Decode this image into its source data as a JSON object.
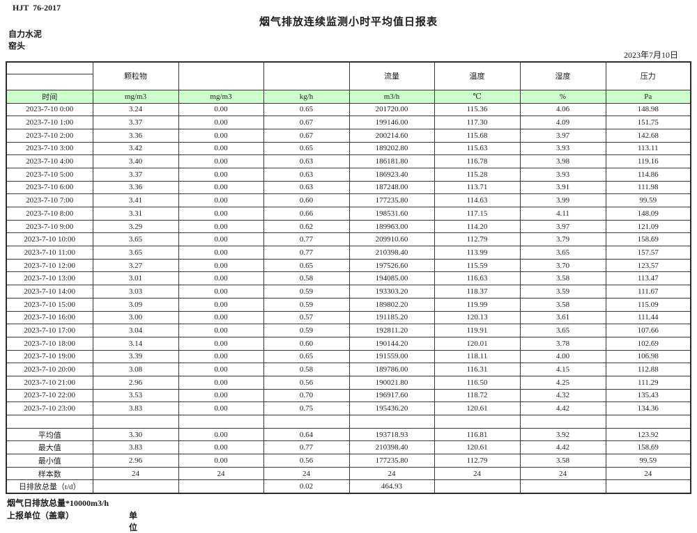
{
  "header": {
    "doc_code": "HJT  76-2017",
    "title": "烟气排放连续监测小时平均值日报表",
    "company": "自力水泥",
    "location": "窑头",
    "date": "2023年7月10日"
  },
  "table": {
    "group_headers": [
      "",
      "颗粒物",
      "",
      "",
      "流量",
      "温度",
      "湿度",
      "压力"
    ],
    "unit_row": [
      "时间",
      "mg/m3",
      "mg/m3",
      "kg/h",
      "m3/h",
      "℃",
      "%",
      "Pa"
    ],
    "rows": [
      [
        "2023-7-10 0:00",
        "3.24",
        "0.00",
        "0.65",
        "201720.00",
        "115.36",
        "4.06",
        "148.98"
      ],
      [
        "2023-7-10 1:00",
        "3.37",
        "0.00",
        "0.67",
        "199146.00",
        "117.30",
        "4.09",
        "151.75"
      ],
      [
        "2023-7-10 2:00",
        "3.36",
        "0.00",
        "0.67",
        "200214.60",
        "115.68",
        "3.97",
        "142.68"
      ],
      [
        "2023-7-10 3:00",
        "3.42",
        "0.00",
        "0.65",
        "189202.80",
        "115.63",
        "3.93",
        "113.11"
      ],
      [
        "2023-7-10 4:00",
        "3.40",
        "0.00",
        "0.63",
        "186181.80",
        "116.78",
        "3.98",
        "119.16"
      ],
      [
        "2023-7-10 5:00",
        "3.37",
        "0.00",
        "0.63",
        "186923.40",
        "115.28",
        "3.93",
        "114.86"
      ],
      [
        "2023-7-10 6:00",
        "3.36",
        "0.00",
        "0.63",
        "187248.00",
        "113.71",
        "3.91",
        "111.98"
      ],
      [
        "2023-7-10 7:00",
        "3.41",
        "0.00",
        "0.60",
        "177235.80",
        "114.63",
        "3.99",
        "99.59"
      ],
      [
        "2023-7-10 8:00",
        "3.31",
        "0.00",
        "0.66",
        "198531.60",
        "117.15",
        "4.11",
        "148.09"
      ],
      [
        "2023-7-10 9:00",
        "3.29",
        "0.00",
        "0.62",
        "189963.00",
        "114.20",
        "3.97",
        "121.09"
      ],
      [
        "2023-7-10 10:00",
        "3.65",
        "0.00",
        "0.77",
        "209910.60",
        "112.79",
        "3.79",
        "158.69"
      ],
      [
        "2023-7-10 11:00",
        "3.65",
        "0.00",
        "0.77",
        "210398.40",
        "113.99",
        "3.65",
        "157.57"
      ],
      [
        "2023-7-10 12:00",
        "3.27",
        "0.00",
        "0.65",
        "197526.60",
        "115.59",
        "3.70",
        "123.57"
      ],
      [
        "2023-7-10 13:00",
        "3.01",
        "0.00",
        "0.58",
        "194085.00",
        "116.63",
        "3.58",
        "113.47"
      ],
      [
        "2023-7-10 14:00",
        "3.03",
        "0.00",
        "0.59",
        "193303.20",
        "118.37",
        "3.59",
        "111.67"
      ],
      [
        "2023-7-10 15:00",
        "3.09",
        "0.00",
        "0.59",
        "189802.20",
        "119.99",
        "3.58",
        "115.09"
      ],
      [
        "2023-7-10 16:00",
        "3.00",
        "0.00",
        "0.57",
        "191185.20",
        "120.13",
        "3.61",
        "111.44"
      ],
      [
        "2023-7-10 17:00",
        "3.04",
        "0.00",
        "0.59",
        "192811.20",
        "119.91",
        "3.65",
        "107.66"
      ],
      [
        "2023-7-10 18:00",
        "3.14",
        "0.00",
        "0.60",
        "190144.20",
        "120.01",
        "3.78",
        "102.69"
      ],
      [
        "2023-7-10 19:00",
        "3.39",
        "0.00",
        "0.65",
        "191559.00",
        "118.11",
        "4.00",
        "106.98"
      ],
      [
        "2023-7-10 20:00",
        "3.08",
        "0.00",
        "0.58",
        "189786.00",
        "116.31",
        "4.15",
        "112.88"
      ],
      [
        "2023-7-10 21:00",
        "2.96",
        "0.00",
        "0.56",
        "190021.80",
        "116.50",
        "4.25",
        "111.29"
      ],
      [
        "2023-7-10 22:00",
        "3.53",
        "0.00",
        "0.70",
        "196917.60",
        "118.72",
        "4.32",
        "135.43"
      ],
      [
        "2023-7-10 23:00",
        "3.83",
        "0.00",
        "0.75",
        "195436.20",
        "120.61",
        "4.42",
        "134.36"
      ]
    ],
    "summary_rows": [
      [
        "平均值",
        "3.30",
        "0.00",
        "0.64",
        "193718.93",
        "116.81",
        "3.92",
        "123.92"
      ],
      [
        "最大值",
        "3.83",
        "0.00",
        "0.77",
        "210398.40",
        "120.61",
        "4.42",
        "158.69"
      ],
      [
        "最小值",
        "2.96",
        "0.00",
        "0.56",
        "177235.80",
        "112.79",
        "3.58",
        "99.59"
      ],
      [
        "样本数",
        "24",
        "24",
        "24",
        "24",
        "24",
        "24",
        "24"
      ],
      [
        "日排放总量（t/d）",
        "",
        "",
        "0.02",
        "464.93",
        "",
        "",
        ""
      ]
    ]
  },
  "footer": {
    "note": "烟气日排放总量*10000m3/h",
    "report_unit_label": "上报单位（盖章）",
    "unit_label": "单位"
  },
  "colors": {
    "header_green": "#ccffcc",
    "border": "#373737"
  }
}
